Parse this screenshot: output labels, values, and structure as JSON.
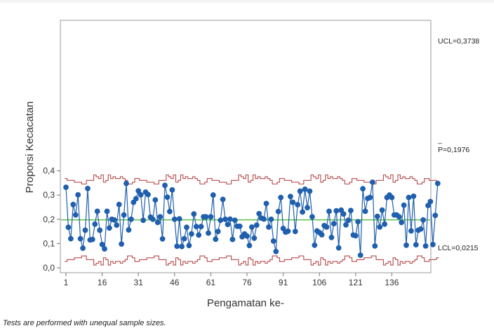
{
  "chart_data": {
    "type": "line",
    "chart_kind": "p-chart",
    "xlabel": "Pengamatan ke-",
    "ylabel": "Proporsi Kecacatan",
    "ylim": [
      0.0,
      0.4
    ],
    "y_ticks": [
      "0,0",
      "0,1",
      "0,2",
      "0,3",
      "0,4"
    ],
    "y_tick_values": [
      0.0,
      0.1,
      0.2,
      0.3,
      0.4
    ],
    "x_ticks": [
      "1",
      "16",
      "31",
      "46",
      "61",
      "76",
      "91",
      "106",
      "121",
      "136"
    ],
    "x_tick_values": [
      1,
      16,
      31,
      46,
      61,
      76,
      91,
      106,
      121,
      136
    ],
    "xlim": [
      0,
      152
    ],
    "center_line": {
      "label": "P=0,1976",
      "value": 0.1976,
      "color": "#5cbf4a"
    },
    "ucl": {
      "label": "UCL=0,3738",
      "typical": 0.3738,
      "color": "#b64a4a"
    },
    "lcl": {
      "label": "LCL=0,0215",
      "typical": 0.0215,
      "color": "#b64a4a"
    },
    "series_color": "#1f5fad",
    "series": [
      {
        "values": [
          0.332,
          0.167,
          0.12,
          0.261,
          0.218,
          0.301,
          0.12,
          0.081,
          0.155,
          0.327,
          0.115,
          0.117,
          0.18,
          0.233,
          0.155,
          0.096,
          0.078,
          0.233,
          0.164,
          0.2,
          0.197,
          0.176,
          0.261,
          0.098,
          0.218,
          0.348,
          0.156,
          0.2,
          0.27,
          0.285,
          0.317,
          0.301,
          0.196,
          0.312,
          0.302,
          0.209,
          0.2,
          0.28,
          0.187,
          0.21,
          0.119,
          0.34,
          0.291,
          0.232,
          0.321,
          0.2,
          0.089,
          0.202,
          0.088,
          0.12,
          0.167,
          0.092,
          0.14,
          0.222,
          0.17,
          0.135,
          0.17,
          0.21,
          0.21,
          0.143,
          0.21,
          0.3,
          0.118,
          0.15,
          0.196,
          0.282,
          0.2,
          0.179,
          0.201,
          0.117,
          0.196,
          0.171,
          0.171,
          0.128,
          0.14,
          0.131,
          0.092,
          0.168,
          0.122,
          0.176,
          0.223,
          0.205,
          0.201,
          0.265,
          0.168,
          0.2,
          0.11,
          0.067,
          0.232,
          0.29,
          0.162,
          0.147,
          0.151,
          0.294,
          0.27,
          0.15,
          0.26,
          0.316,
          0.23,
          0.324,
          0.248,
          0.316,
          0.21,
          0.093,
          0.152,
          0.145,
          0.136,
          0.174,
          0.168,
          0.233,
          0.125,
          0.182,
          0.235,
          0.082,
          0.238,
          0.222,
          0.177,
          0.196,
          0.236,
          0.135,
          0.132,
          0.19,
          0.052,
          0.326,
          0.233,
          0.286,
          0.29,
          0.353,
          0.09,
          0.212,
          0.168,
          0.238,
          0.18,
          0.29,
          0.3,
          0.29,
          0.218,
          0.218,
          0.21,
          0.187,
          0.258,
          0.093,
          0.29,
          0.152,
          0.295,
          0.095,
          0.155,
          0.16,
          0.197,
          0.09,
          0.257,
          0.273,
          0.096,
          0.216,
          0.348
        ]
      }
    ],
    "footnote": "Tests are performed with unequal sample sizes."
  }
}
